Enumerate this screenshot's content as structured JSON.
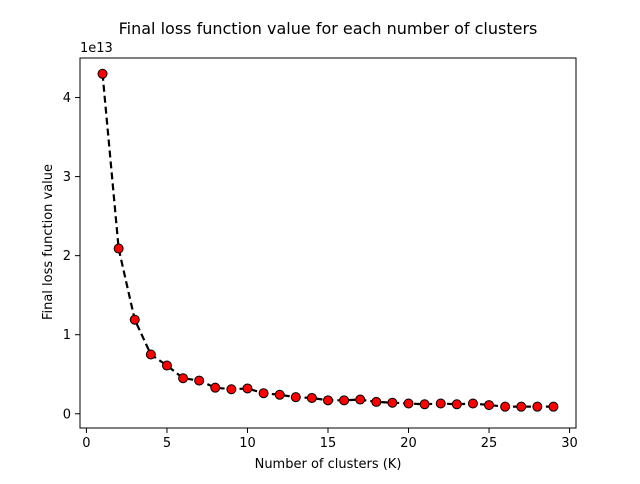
{
  "chart_data": {
    "type": "line",
    "title": "Final loss function value for each number of clusters",
    "xlabel": "Number of clusters (K)",
    "ylabel": "Final loss function value",
    "y_offset_label": "1e13",
    "xlim": [
      -0.4,
      30.4
    ],
    "ylim": [
      -0.18,
      4.5
    ],
    "x_ticks": [
      0,
      5,
      10,
      15,
      20,
      25,
      30
    ],
    "y_ticks": [
      0,
      1,
      2,
      3,
      4
    ],
    "grid": false,
    "line_style": "dashed",
    "line_color": "#000000",
    "marker_face_color": "#ff0000",
    "marker_edge_color": "#000000",
    "x": [
      1,
      2,
      3,
      4,
      5,
      6,
      7,
      8,
      9,
      10,
      11,
      12,
      13,
      14,
      15,
      16,
      17,
      18,
      19,
      20,
      21,
      22,
      23,
      24,
      25,
      26,
      27,
      28,
      29
    ],
    "values": [
      4.3,
      2.09,
      1.19,
      0.75,
      0.61,
      0.45,
      0.42,
      0.33,
      0.31,
      0.32,
      0.26,
      0.24,
      0.21,
      0.2,
      0.17,
      0.17,
      0.18,
      0.15,
      0.14,
      0.13,
      0.12,
      0.13,
      0.12,
      0.13,
      0.11,
      0.09,
      0.09,
      0.09,
      0.09
    ]
  }
}
